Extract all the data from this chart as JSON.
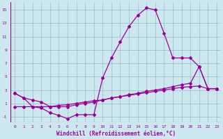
{
  "xlabel": "Windchill (Refroidissement éolien,°C)",
  "bg_color": "#cce8ee",
  "line_color": "#990099",
  "grid_color": "#99bbcc",
  "xlim": [
    -0.5,
    23.5
  ],
  "ylim": [
    -1.8,
    16.2
  ],
  "yticks": [
    -1,
    1,
    3,
    5,
    7,
    9,
    11,
    13,
    15
  ],
  "xticks": [
    0,
    1,
    2,
    3,
    4,
    5,
    6,
    7,
    8,
    9,
    10,
    11,
    12,
    13,
    14,
    15,
    16,
    17,
    18,
    19,
    20,
    21,
    22,
    23
  ],
  "line1_x": [
    0,
    1,
    2,
    3,
    4,
    5,
    6,
    7,
    8,
    9,
    10,
    11,
    12,
    13,
    14,
    15,
    16,
    17,
    18,
    19,
    20,
    21,
    22,
    23
  ],
  "line1_y": [
    2.5,
    1.8,
    0.5,
    0.3,
    -0.4,
    -0.8,
    -1.3,
    -0.7,
    -0.7,
    -0.7,
    4.8,
    7.8,
    10.2,
    12.5,
    14.2,
    15.3,
    15.0,
    11.5,
    7.8,
    7.8,
    7.8,
    6.5,
    3.2,
    3.2
  ],
  "line2_x": [
    0,
    1,
    2,
    3,
    4,
    5,
    6,
    7,
    8,
    9,
    10,
    11,
    12,
    13,
    14,
    15,
    16,
    17,
    18,
    19,
    20,
    21,
    22,
    23
  ],
  "line2_y": [
    2.5,
    1.8,
    1.5,
    1.2,
    0.5,
    0.5,
    0.5,
    0.8,
    1.0,
    1.2,
    1.5,
    1.8,
    2.0,
    2.3,
    2.5,
    2.8,
    3.0,
    3.2,
    3.5,
    3.8,
    4.0,
    6.5,
    3.2,
    3.2
  ],
  "line3_x": [
    0,
    1,
    2,
    3,
    4,
    5,
    6,
    7,
    8,
    9,
    10,
    11,
    12,
    13,
    14,
    15,
    16,
    17,
    18,
    19,
    20,
    21,
    22,
    23
  ],
  "line3_y": [
    0.5,
    0.5,
    0.5,
    0.5,
    0.5,
    0.7,
    0.8,
    1.0,
    1.2,
    1.4,
    1.5,
    1.8,
    2.0,
    2.2,
    2.4,
    2.6,
    2.8,
    3.0,
    3.2,
    3.4,
    3.5,
    3.6,
    3.2,
    3.2
  ]
}
